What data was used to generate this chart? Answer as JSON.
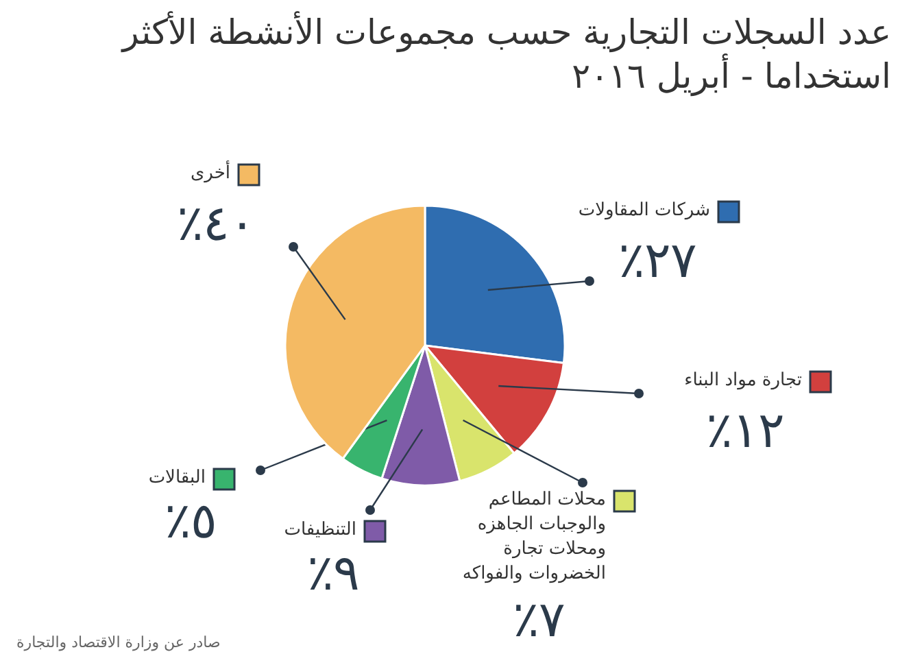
{
  "chart_data": {
    "type": "pie",
    "title": "عدد السجلات التجارية حسب مجموعات الأنشطة الأكثر استخداما - أبريل ٢٠١٦",
    "categories": [
      "شركات المقاولات",
      "تجارة مواد البناء",
      "محلات المطاعم والوجبات الجاهزه ومحلات تجارة الخضروات والفواكه",
      "التنظيفات",
      "البقالات",
      "أخرى"
    ],
    "values": [
      27,
      12,
      7,
      9,
      5,
      40
    ],
    "value_labels": [
      "٢٧٪",
      "١٢٪",
      "٧٪",
      "٩٪",
      "٥٪",
      "٤٠٪"
    ],
    "colors": [
      "#2f6db0",
      "#d2403e",
      "#d9e46c",
      "#7f5ba8",
      "#38b46e",
      "#f4ba63"
    ],
    "legend": "right",
    "annotations": [
      "صادر عن وزارة الاقتصاد والتجارة"
    ]
  }
}
